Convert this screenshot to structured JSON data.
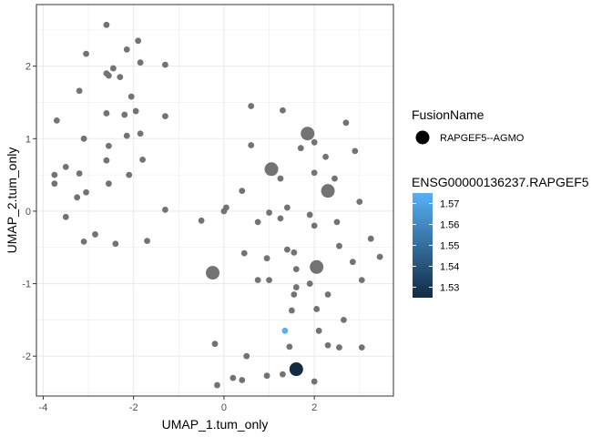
{
  "chart_data": {
    "type": "scatter",
    "xlabel": "UMAP_1.tum_only",
    "ylabel": "UMAP_2.tum_only",
    "xlim": [
      -4.15,
      3.75
    ],
    "ylim": [
      -2.55,
      2.85
    ],
    "xticks": [
      -4,
      -2,
      0,
      2
    ],
    "xtick_labels": [
      "-4",
      "-2",
      "0",
      "2"
    ],
    "yticks": [
      -2,
      -1,
      0,
      1,
      2
    ],
    "ytick_labels": [
      "-2",
      "-1",
      "0",
      "1",
      "2"
    ],
    "grid": true,
    "legend_position": "right",
    "background_points": [
      [
        -2.6,
        2.57
      ],
      [
        -2.15,
        2.23
      ],
      [
        -1.9,
        2.35
      ],
      [
        -3.05,
        2.17
      ],
      [
        -2.45,
        1.97
      ],
      [
        -1.85,
        2.05
      ],
      [
        -2.6,
        1.9
      ],
      [
        -2.55,
        1.87
      ],
      [
        -2.3,
        1.85
      ],
      [
        -1.3,
        2.02
      ],
      [
        -3.2,
        1.66
      ],
      [
        -2.05,
        1.58
      ],
      [
        -1.95,
        1.38
      ],
      [
        -2.6,
        1.35
      ],
      [
        -2.2,
        1.33
      ],
      [
        -1.3,
        1.31
      ],
      [
        -3.7,
        1.25
      ],
      [
        -3.1,
        1.0
      ],
      [
        -1.85,
        1.07
      ],
      [
        -2.15,
        1.04
      ],
      [
        -2.55,
        0.9
      ],
      [
        -1.8,
        0.71
      ],
      [
        -2.6,
        0.7
      ],
      [
        -3.5,
        0.61
      ],
      [
        -3.75,
        0.5
      ],
      [
        -3.2,
        0.52
      ],
      [
        -2.1,
        0.5
      ],
      [
        -3.75,
        0.38
      ],
      [
        -3.05,
        0.26
      ],
      [
        -2.55,
        0.38
      ],
      [
        -3.25,
        0.19
      ],
      [
        -1.3,
        0.02
      ],
      [
        -3.5,
        -0.08
      ],
      [
        -2.85,
        -0.32
      ],
      [
        -3.1,
        -0.42
      ],
      [
        -2.4,
        -0.45
      ],
      [
        -1.7,
        -0.41
      ],
      [
        -0.5,
        -0.13
      ],
      [
        0.0,
        0.0
      ],
      [
        0.05,
        0.05
      ],
      [
        0.4,
        0.28
      ],
      [
        0.6,
        0.91
      ],
      [
        0.6,
        1.45
      ],
      [
        1.3,
        1.39
      ],
      [
        1.7,
        0.87
      ],
      [
        2.0,
        0.95
      ],
      [
        2.25,
        0.75
      ],
      [
        2.7,
        1.22
      ],
      [
        2.9,
        0.83
      ],
      [
        2.0,
        0.53
      ],
      [
        2.45,
        0.45
      ],
      [
        1.25,
        0.45
      ],
      [
        3.0,
        0.13
      ],
      [
        0.75,
        -0.15
      ],
      [
        1.0,
        -0.02
      ],
      [
        1.25,
        -0.1
      ],
      [
        1.4,
        0.05
      ],
      [
        2.5,
        -0.15
      ],
      [
        1.9,
        -0.05
      ],
      [
        2.0,
        -0.2
      ],
      [
        3.25,
        -0.38
      ],
      [
        3.45,
        -0.63
      ],
      [
        2.55,
        -0.48
      ],
      [
        1.4,
        -0.53
      ],
      [
        1.55,
        -0.57
      ],
      [
        0.45,
        -0.58
      ],
      [
        0.95,
        -0.65
      ],
      [
        1.6,
        -0.8
      ],
      [
        2.85,
        -0.7
      ],
      [
        0.75,
        -0.95
      ],
      [
        1.0,
        -0.95
      ],
      [
        3.05,
        -0.95
      ],
      [
        1.9,
        -1.0
      ],
      [
        1.6,
        -1.05
      ],
      [
        1.55,
        -1.15
      ],
      [
        2.3,
        -1.15
      ],
      [
        2.05,
        -1.35
      ],
      [
        1.5,
        -1.37
      ],
      [
        2.65,
        -1.5
      ],
      [
        2.1,
        -1.65
      ],
      [
        -0.2,
        -1.83
      ],
      [
        1.45,
        -1.87
      ],
      [
        2.3,
        -1.85
      ],
      [
        2.55,
        -1.88
      ],
      [
        3.05,
        -1.88
      ],
      [
        0.5,
        -2.0
      ],
      [
        0.95,
        -2.27
      ],
      [
        1.3,
        -2.25
      ],
      [
        2.0,
        -2.35
      ],
      [
        0.2,
        -2.3
      ],
      [
        0.4,
        -2.33
      ],
      [
        -0.15,
        -2.4
      ]
    ],
    "large_points": [
      [
        1.85,
        1.07
      ],
      [
        1.05,
        0.58
      ],
      [
        2.3,
        0.28
      ],
      [
        -0.25,
        -0.85
      ],
      [
        2.05,
        -0.77
      ]
    ],
    "colored_points": [
      {
        "x": 1.35,
        "y": -1.65,
        "value": 1.575
      },
      {
        "x": 1.6,
        "y": -2.18,
        "value": 1.525
      }
    ],
    "legends": {
      "shape": {
        "title": "FusionName",
        "entries": [
          "RAPGEF5--AGMO"
        ]
      },
      "color": {
        "title": "ENSG00000136237.RAPGEF5",
        "tick_values": [
          1.57,
          1.56,
          1.55,
          1.54,
          1.53
        ],
        "tick_labels": [
          "1.57",
          "1.56",
          "1.55",
          "1.54",
          "1.53"
        ],
        "range": [
          1.525,
          1.575
        ],
        "low_color": "#132b43",
        "high_color": "#56b1f7"
      }
    },
    "colors": {
      "background_point": "#737373",
      "panel_border": "#333333",
      "grid": "#ebebeb"
    }
  }
}
